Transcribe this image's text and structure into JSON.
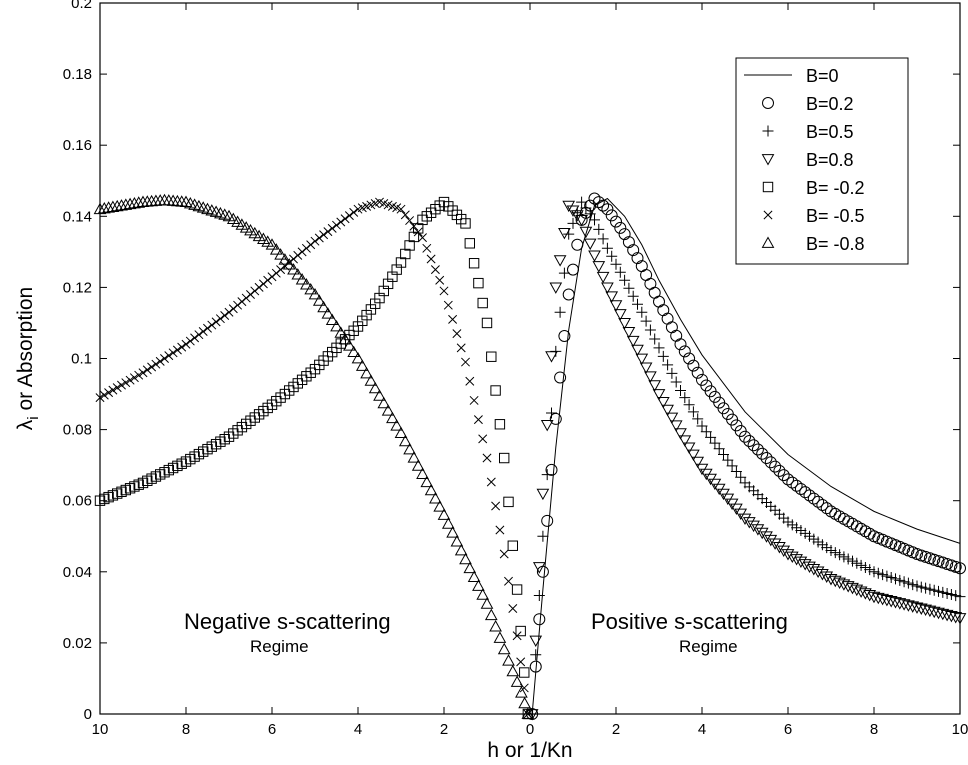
{
  "chart_data": {
    "type": "scatter",
    "xlabel": "h or 1/Kn",
    "ylabel_main": "λ",
    "ylabel_sub": "i",
    "ylabel_rest": " or Absorption",
    "xlim": [
      -10,
      10
    ],
    "ylim": [
      0,
      0.2
    ],
    "x_ticks": [
      -10,
      -8,
      -6,
      -4,
      -2,
      0,
      2,
      4,
      6,
      8,
      10
    ],
    "x_tick_labels": [
      "10",
      "8",
      "6",
      "4",
      "2",
      "0",
      "2",
      "4",
      "6",
      "8",
      "10"
    ],
    "y_ticks": [
      0,
      0.02,
      0.04,
      0.06,
      0.08,
      0.1,
      0.12,
      0.14,
      0.16,
      0.18,
      0.2
    ],
    "y_tick_labels": [
      "0",
      "0.02",
      "0.04",
      "0.06",
      "0.08",
      "0.1",
      "0.12",
      "0.14",
      "0.16",
      "0.18",
      "0.2"
    ],
    "grid": false,
    "legend_position": "top-right",
    "annotations": {
      "left_title": "Negative s-scattering",
      "left_sub": "Regime",
      "right_title": "Positive s-scattering",
      "right_sub": "Regime"
    },
    "series": [
      {
        "name": "B=0",
        "marker": "line",
        "x": [
          0.05,
          0.3,
          0.6,
          0.9,
          1.2,
          1.5,
          1.8,
          2.2,
          2.6,
          3.0,
          3.5,
          4.0,
          5.0,
          6.0,
          7.0,
          8.0,
          9.0,
          10.0
        ],
        "y": [
          0.0,
          0.035,
          0.075,
          0.108,
          0.131,
          0.143,
          0.145,
          0.14,
          0.132,
          0.122,
          0.111,
          0.101,
          0.085,
          0.073,
          0.064,
          0.057,
          0.052,
          0.048
        ]
      },
      {
        "name": "B=0.2",
        "marker": "circle",
        "x": [
          0.05,
          0.3,
          0.6,
          0.9,
          1.2,
          1.5,
          1.8,
          2.2,
          2.6,
          3.0,
          3.5,
          4.0,
          5.0,
          6.0,
          7.0,
          8.0,
          9.0,
          10.0
        ],
        "y": [
          0.0,
          0.04,
          0.083,
          0.118,
          0.139,
          0.145,
          0.142,
          0.135,
          0.126,
          0.116,
          0.104,
          0.094,
          0.078,
          0.066,
          0.057,
          0.05,
          0.045,
          0.041
        ]
      },
      {
        "name": "B=0.5",
        "marker": "plus",
        "x": [
          0.05,
          0.3,
          0.6,
          0.9,
          1.2,
          1.5,
          1.8,
          2.2,
          2.6,
          3.0,
          3.5,
          4.0,
          5.0,
          6.0,
          7.0,
          8.0,
          9.0,
          10.0
        ],
        "y": [
          0.0,
          0.05,
          0.102,
          0.135,
          0.144,
          0.139,
          0.131,
          0.122,
          0.113,
          0.103,
          0.091,
          0.081,
          0.065,
          0.054,
          0.046,
          0.04,
          0.036,
          0.033
        ]
      },
      {
        "name": "B=0.8",
        "marker": "triangle-down",
        "x": [
          0.05,
          0.3,
          0.6,
          0.9,
          1.2,
          1.5,
          1.8,
          2.2,
          2.6,
          3.0,
          3.5,
          4.0,
          5.0,
          6.0,
          7.0,
          8.0,
          9.0,
          10.0
        ],
        "y": [
          0.0,
          0.062,
          0.12,
          0.143,
          0.139,
          0.129,
          0.12,
          0.11,
          0.1,
          0.09,
          0.079,
          0.069,
          0.055,
          0.045,
          0.038,
          0.033,
          0.03,
          0.027
        ]
      },
      {
        "name": "B= -0.2",
        "marker": "square",
        "x": [
          -10,
          -9,
          -8,
          -7,
          -6,
          -5,
          -4,
          -3.5,
          -3,
          -2.5,
          -2,
          -1.5,
          -1.0,
          -0.6,
          -0.3,
          -0.05
        ],
        "y": [
          0.06,
          0.065,
          0.071,
          0.078,
          0.087,
          0.097,
          0.109,
          0.117,
          0.127,
          0.139,
          0.144,
          0.138,
          0.11,
          0.072,
          0.035,
          0.0
        ]
      },
      {
        "name": "B= -0.5",
        "marker": "x",
        "x": [
          -10,
          -9,
          -8,
          -7,
          -6,
          -5,
          -4,
          -3.5,
          -3.0,
          -2.5,
          -2.0,
          -1.5,
          -1.0,
          -0.6,
          -0.3,
          -0.05
        ],
        "y": [
          0.089,
          0.096,
          0.104,
          0.113,
          0.123,
          0.133,
          0.142,
          0.144,
          0.142,
          0.134,
          0.119,
          0.099,
          0.072,
          0.045,
          0.022,
          0.0
        ]
      },
      {
        "name": "B= -0.8",
        "marker": "triangle-up",
        "x": [
          -10,
          -9,
          -8.5,
          -8,
          -7,
          -6,
          -5,
          -4,
          -3,
          -2,
          -1,
          -0.5,
          -0.2,
          -0.05
        ],
        "y": [
          0.142,
          0.144,
          0.1445,
          0.144,
          0.14,
          0.132,
          0.118,
          0.1,
          0.079,
          0.056,
          0.031,
          0.015,
          0.006,
          0.0
        ]
      }
    ]
  }
}
